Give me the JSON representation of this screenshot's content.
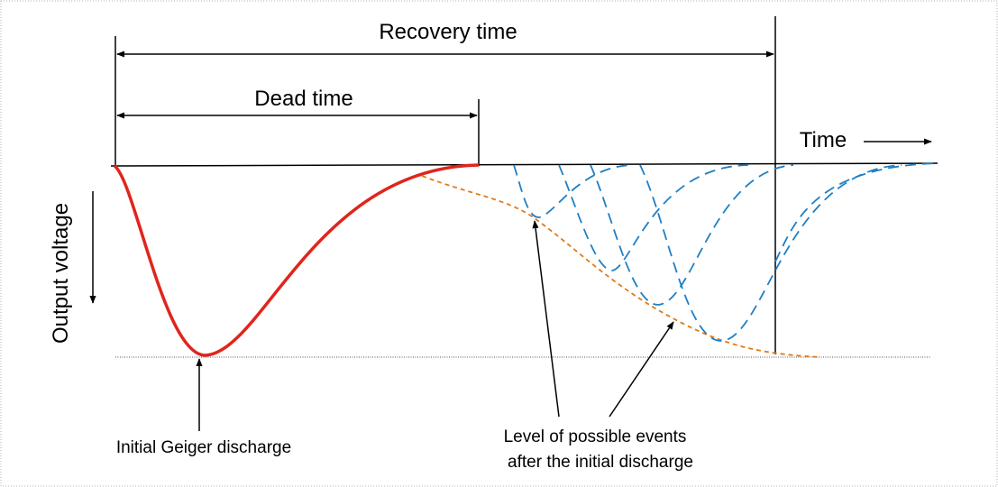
{
  "labels": {
    "recovery_time": "Recovery time",
    "dead_time": "Dead time",
    "time": "Time",
    "output_voltage": "Output voltage",
    "initial_discharge": "Initial Geiger discharge",
    "possible_events_line1": "Level of possible events",
    "possible_events_line2": "after the initial discharge"
  },
  "colors": {
    "initial_curve": "#e0251c",
    "event_curves": "#1f7fc4",
    "envelope": "#e07a1a",
    "axis": "#000000",
    "frame": "#b0b0b0"
  }
}
